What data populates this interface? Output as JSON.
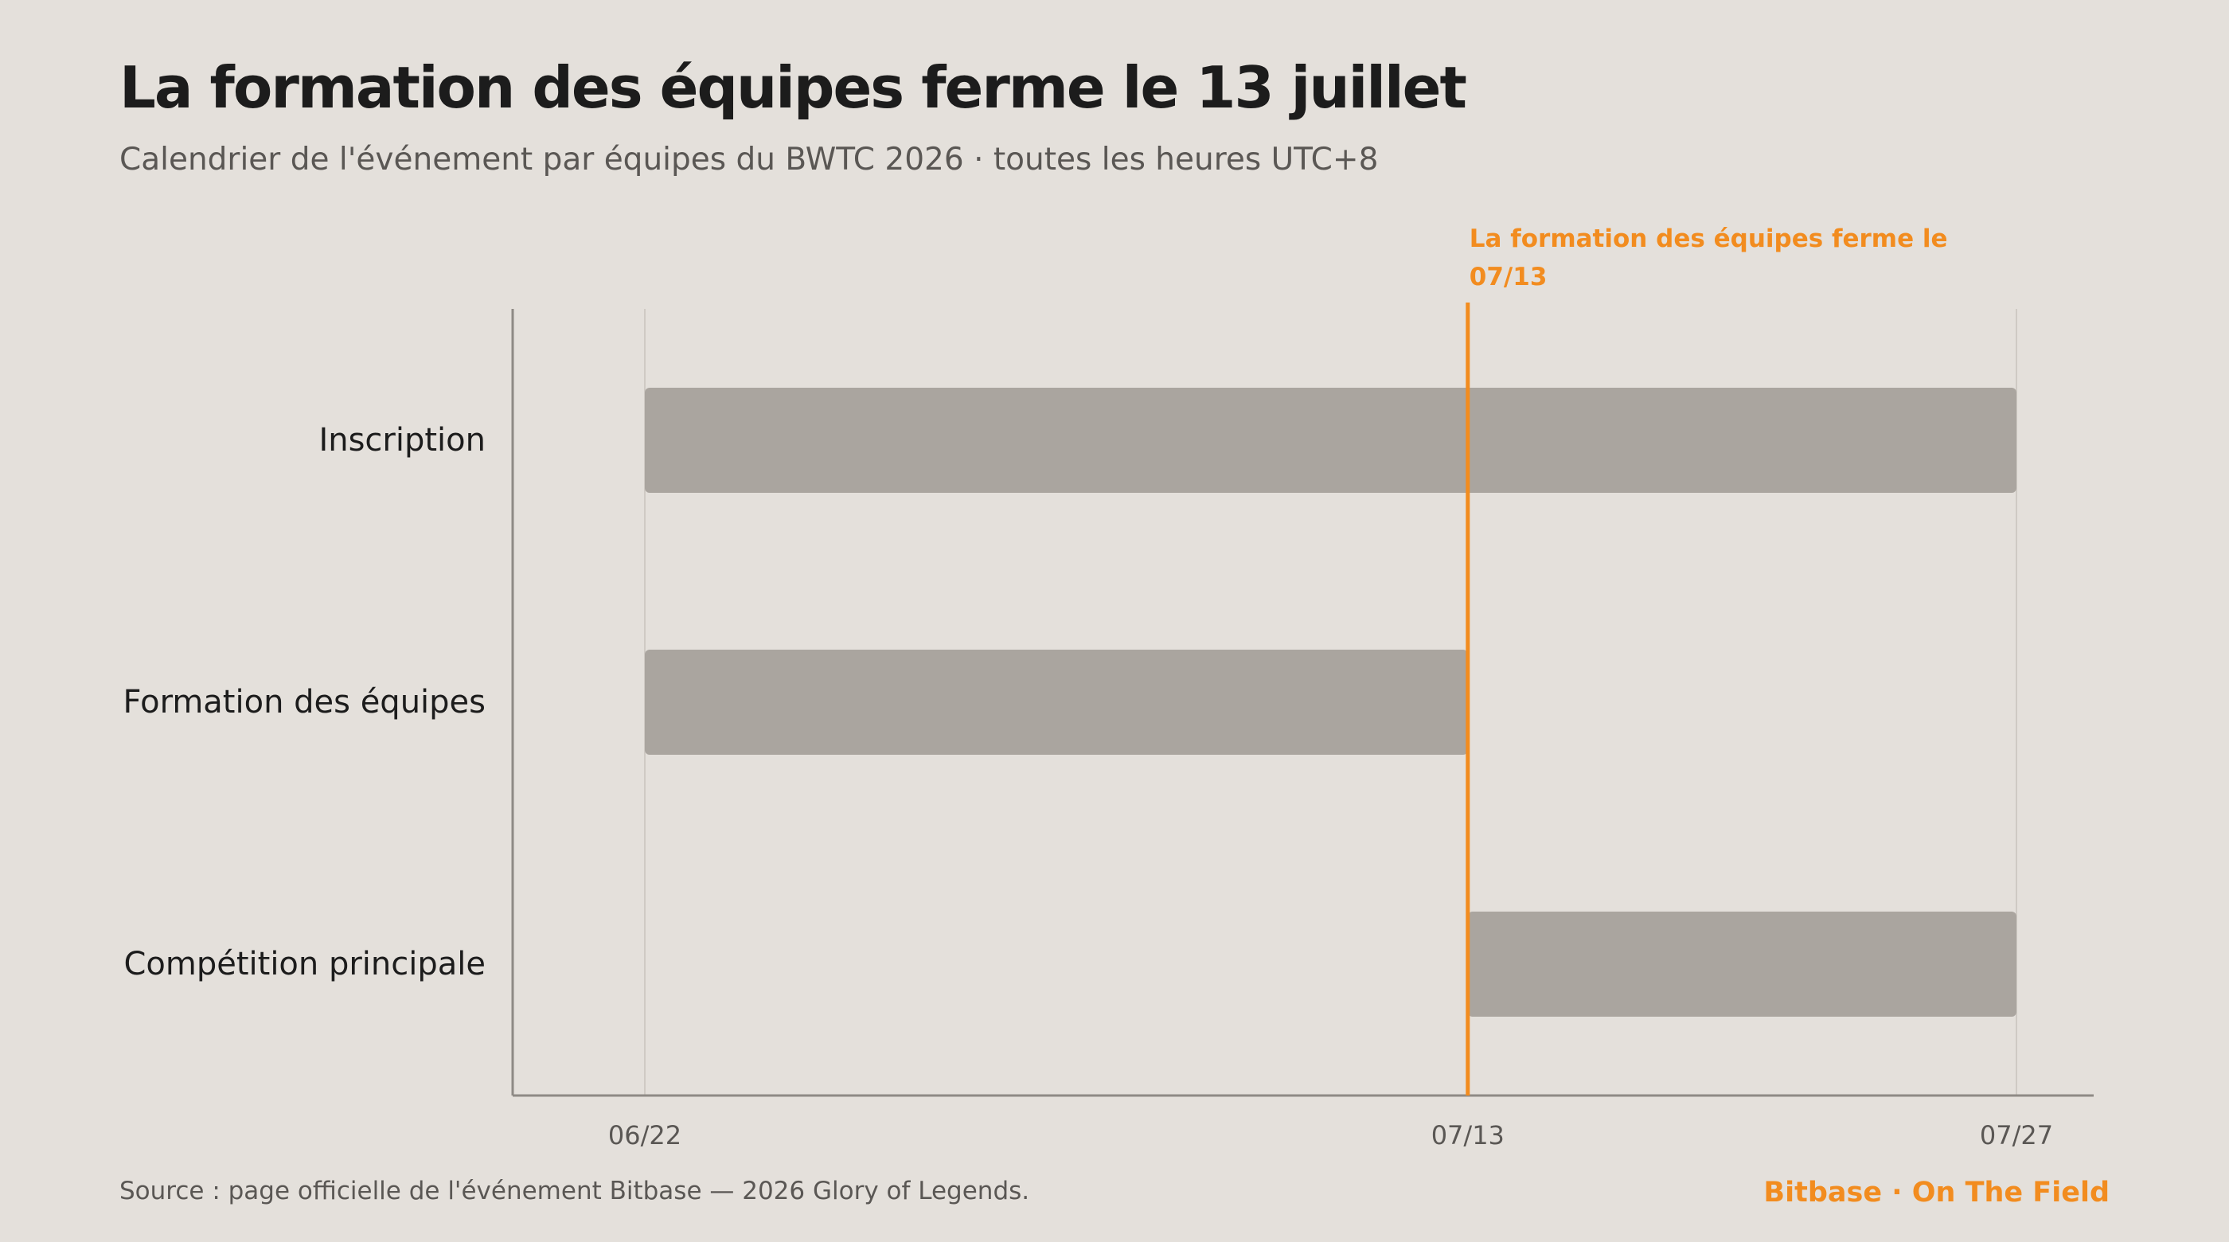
{
  "header": {
    "title": "La formation des équipes ferme le 13 juillet",
    "subtitle": "Calendrier de l'événement par équipes du BWTC 2026 · toutes les heures UTC+8"
  },
  "footer": {
    "source": "Source : page officielle de l'événement Bitbase — 2026 Glory of Legends.",
    "brand": "Bitbase · On The Field"
  },
  "colors": {
    "background": "#e4e0db",
    "bar": "#aaa59f",
    "accent": "#f28c1f",
    "axis": "#8e8a85",
    "grid": "#cfcac4",
    "label": "#1c1c1c",
    "tick": "#5a5754"
  },
  "chart_data": {
    "type": "gantt",
    "x_axis": {
      "type": "date",
      "year": 2026,
      "ticks": [
        "06/22",
        "07/13",
        "07/27"
      ],
      "range": [
        "06/22",
        "07/27"
      ]
    },
    "tasks": [
      {
        "label": "Inscription",
        "start": "06/22",
        "end": "07/27"
      },
      {
        "label": "Formation des équipes",
        "start": "06/22",
        "end": "07/13"
      },
      {
        "label": "Compétition principale",
        "start": "07/13",
        "end": "07/27"
      }
    ],
    "annotation": {
      "date": "07/13",
      "text_line1": "La formation des équipes ferme le",
      "text_line2": "07/13"
    },
    "grid": true
  }
}
